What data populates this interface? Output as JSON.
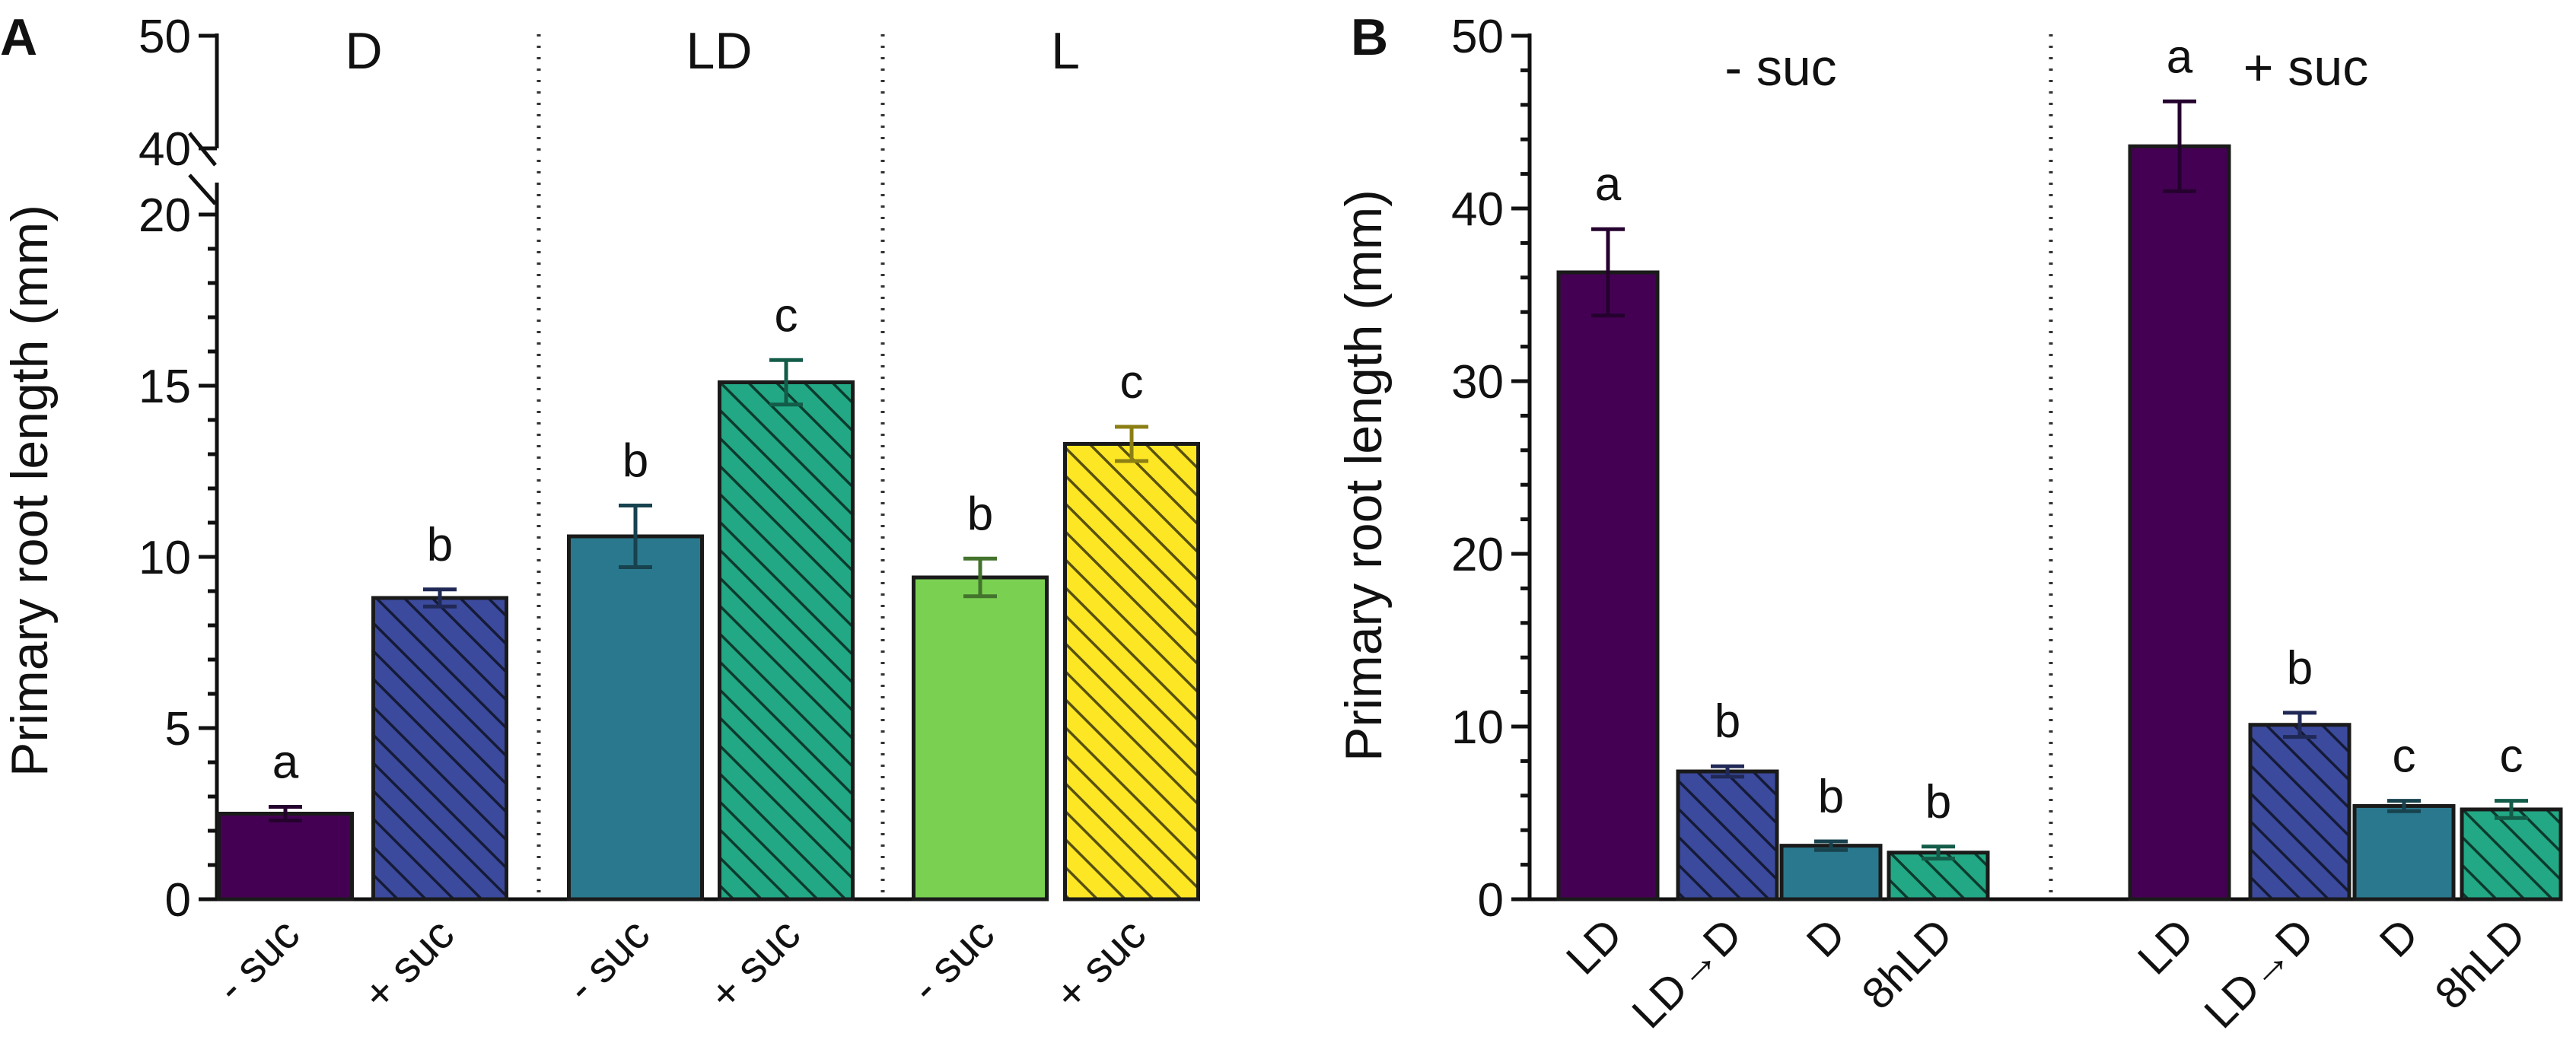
{
  "chart_data": [
    {
      "type": "bar",
      "panel_label": "A",
      "ylabel": "Primary root length (mm)",
      "ylim": [
        0,
        50
      ],
      "axis_break": {
        "lower_max": 20,
        "upper_min": 40,
        "upper_max": 50
      },
      "y_ticks_lower": [
        0,
        5,
        10,
        15,
        20
      ],
      "y_ticks_lower_labels": [
        "0",
        "5",
        "10",
        "15",
        "20"
      ],
      "y_ticks_upper": [
        40,
        50
      ],
      "y_ticks_upper_labels": [
        "40",
        "50"
      ],
      "groups": [
        {
          "label": "D",
          "categories": [
            "- suc",
            "+ suc"
          ]
        },
        {
          "label": "LD",
          "categories": [
            "- suc",
            "+ suc"
          ]
        },
        {
          "label": "L",
          "categories": [
            "- suc",
            "+ suc"
          ]
        }
      ],
      "bars": [
        {
          "group": "D",
          "category": "- suc",
          "value": 2.5,
          "error": 0.2,
          "letter": "a",
          "color": "#440154",
          "hatched": false
        },
        {
          "group": "D",
          "category": "+ suc",
          "value": 8.8,
          "error": 0.25,
          "letter": "b",
          "color": "#3b4a9c",
          "hatched": true
        },
        {
          "group": "LD",
          "category": "- suc",
          "value": 10.6,
          "error": 0.9,
          "letter": "b",
          "color": "#2a788e",
          "hatched": false
        },
        {
          "group": "LD",
          "category": "+ suc",
          "value": 15.1,
          "error": 0.65,
          "letter": "c",
          "color": "#22a884",
          "hatched": true
        },
        {
          "group": "L",
          "category": "- suc",
          "value": 9.4,
          "error": 0.55,
          "letter": "b",
          "color": "#7ad151",
          "hatched": false
        },
        {
          "group": "L",
          "category": "+ suc",
          "value": 13.3,
          "error": 0.5,
          "letter": "c",
          "color": "#fde725",
          "hatched": true
        }
      ]
    },
    {
      "type": "bar",
      "panel_label": "B",
      "ylabel": "Primary root length (mm)",
      "ylim": [
        0,
        50
      ],
      "y_ticks": [
        0,
        10,
        20,
        30,
        40,
        50
      ],
      "y_tick_labels": [
        "0",
        "10",
        "20",
        "30",
        "40",
        "50"
      ],
      "groups": [
        {
          "label": "- suc",
          "categories": [
            "LD",
            "LD→D",
            "D",
            "8hLD"
          ]
        },
        {
          "label": "+ suc",
          "categories": [
            "LD",
            "LD→D",
            "D",
            "8hLD"
          ]
        }
      ],
      "bars": [
        {
          "group": "- suc",
          "category": "LD",
          "value": 36.3,
          "error": 2.5,
          "letter": "a",
          "color": "#440154",
          "hatched": false
        },
        {
          "group": "- suc",
          "category": "LD→D",
          "value": 7.4,
          "error": 0.3,
          "letter": "b",
          "color": "#3b4a9c",
          "hatched": true
        },
        {
          "group": "- suc",
          "category": "D",
          "value": 3.1,
          "error": 0.25,
          "letter": "b",
          "color": "#2a788e",
          "hatched": false
        },
        {
          "group": "- suc",
          "category": "8hLD",
          "value": 2.7,
          "error": 0.35,
          "letter": "b",
          "color": "#22a884",
          "hatched": true
        },
        {
          "group": "+ suc",
          "category": "LD",
          "value": 43.6,
          "error": 2.6,
          "letter": "a",
          "color": "#440154",
          "hatched": false
        },
        {
          "group": "+ suc",
          "category": "LD→D",
          "value": 10.1,
          "error": 0.7,
          "letter": "b",
          "color": "#3b4a9c",
          "hatched": true
        },
        {
          "group": "+ suc",
          "category": "D",
          "value": 5.4,
          "error": 0.3,
          "letter": "c",
          "color": "#2a788e",
          "hatched": false
        },
        {
          "group": "+ suc",
          "category": "8hLD",
          "value": 5.2,
          "error": 0.5,
          "letter": "c",
          "color": "#22a884",
          "hatched": true
        }
      ]
    }
  ]
}
